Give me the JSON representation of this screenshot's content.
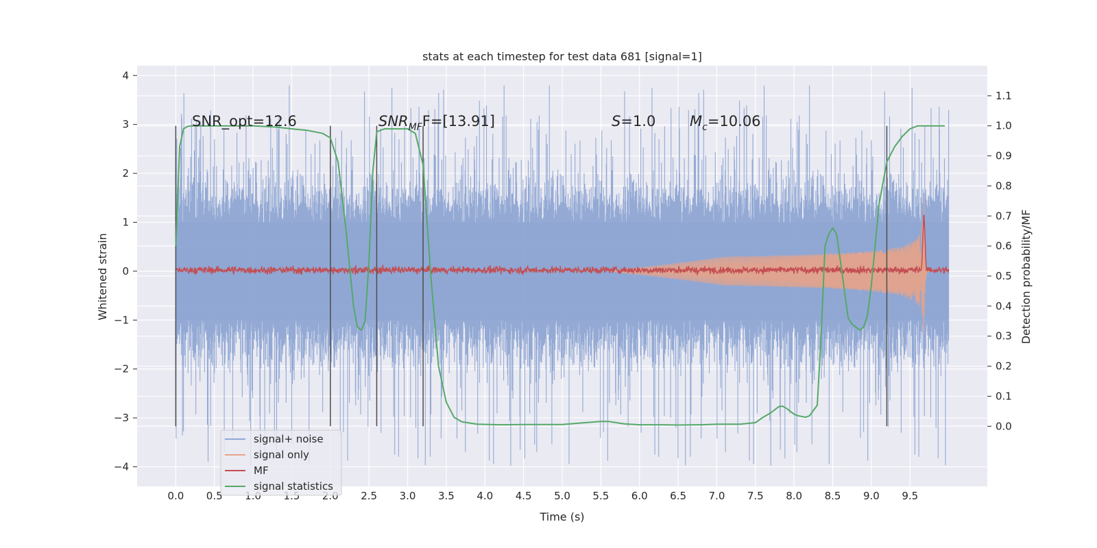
{
  "chart_data": {
    "type": "line",
    "title": "stats at each timestep for test data 681 [signal=1]",
    "xlabel": "Time (s)",
    "ylabel": "Whitened strain",
    "y2label": "Detection probability/MF",
    "xlim": [
      -0.5,
      10.5
    ],
    "ylim": [
      -4.4,
      4.2
    ],
    "y2lim": [
      -0.2,
      1.2
    ],
    "x_ticks": [
      "0.0",
      "0.5",
      "1.0",
      "1.5",
      "2.0",
      "2.5",
      "3.0",
      "3.5",
      "4.0",
      "4.5",
      "5.0",
      "5.5",
      "6.0",
      "6.5",
      "7.0",
      "7.5",
      "8.0",
      "8.5",
      "9.0",
      "9.5"
    ],
    "y_ticks": [
      "4",
      "3",
      "2",
      "1",
      "0",
      "−1",
      "−2",
      "−3",
      "−4"
    ],
    "y2_ticks": [
      "1.1",
      "1.0",
      "0.9",
      "0.8",
      "0.7",
      "0.6",
      "0.5",
      "0.4",
      "0.3",
      "0.2",
      "0.1",
      "0.0"
    ],
    "grid": true,
    "legend_position": "lower-left",
    "annotations": {
      "snr_opt": "SNR_opt=12.6",
      "snr_mf_main": "SNR",
      "snr_mf_sub": "MF",
      "snr_mf_rest": "F=[13.91]",
      "s_main": "S",
      "s_rest": "=1.0",
      "mc_main": "M",
      "mc_sub": "c",
      "mc_rest": "=10.06"
    },
    "window_lines_x": [
      0.0,
      2.0,
      2.6,
      3.2,
      9.2
    ],
    "series": [
      {
        "name": "signal+ noise",
        "color": "#8fa7d3",
        "noise_range": [
          -4.0,
          3.8
        ],
        "x_range": [
          0.0,
          10.0
        ]
      },
      {
        "name": "signal only",
        "color": "#e8a387",
        "chirp_peak_time": 9.68,
        "chirp_peak_amplitude": 1.5
      },
      {
        "name": "MF",
        "color": "#c44e52",
        "baseline": 0.52,
        "peak_time": 9.68,
        "peak_value": 0.72
      },
      {
        "name": "signal statistics",
        "color": "#55a868",
        "x": [
          0.0,
          0.05,
          0.1,
          0.15,
          0.2,
          0.3,
          0.5,
          1.0,
          1.3,
          1.5,
          1.7,
          1.9,
          2.0,
          2.1,
          2.2,
          2.3,
          2.35,
          2.4,
          2.45,
          2.5,
          2.55,
          2.6,
          2.7,
          2.8,
          3.0,
          3.1,
          3.2,
          3.3,
          3.4,
          3.5,
          3.6,
          3.7,
          3.9,
          4.2,
          4.5,
          5.0,
          5.2,
          5.5,
          5.6,
          5.8,
          6.0,
          6.3,
          6.5,
          6.8,
          7.0,
          7.3,
          7.5,
          7.6,
          7.7,
          7.8,
          7.85,
          7.9,
          8.0,
          8.05,
          8.15,
          8.2,
          8.3,
          8.35,
          8.4,
          8.45,
          8.5,
          8.55,
          8.6,
          8.7,
          8.75,
          8.8,
          8.85,
          8.9,
          8.95,
          9.0,
          9.1,
          9.2,
          9.3,
          9.4,
          9.5,
          9.6,
          9.7,
          9.8,
          9.95
        ],
        "y": [
          0.6,
          0.93,
          0.99,
          0.998,
          1.0,
          1.0,
          1.0,
          1.0,
          0.996,
          0.99,
          0.985,
          0.975,
          0.96,
          0.88,
          0.66,
          0.4,
          0.33,
          0.32,
          0.35,
          0.55,
          0.85,
          0.98,
          0.99,
          0.99,
          0.99,
          0.975,
          0.87,
          0.5,
          0.2,
          0.08,
          0.03,
          0.015,
          0.007,
          0.005,
          0.006,
          0.006,
          0.01,
          0.016,
          0.016,
          0.008,
          0.005,
          0.005,
          0.004,
          0.005,
          0.007,
          0.007,
          0.012,
          0.03,
          0.045,
          0.065,
          0.067,
          0.06,
          0.04,
          0.035,
          0.03,
          0.035,
          0.07,
          0.3,
          0.6,
          0.64,
          0.66,
          0.64,
          0.55,
          0.36,
          0.34,
          0.33,
          0.32,
          0.33,
          0.37,
          0.47,
          0.74,
          0.88,
          0.93,
          0.965,
          0.99,
          1.0,
          1.0,
          1.0,
          1.0
        ]
      }
    ]
  }
}
